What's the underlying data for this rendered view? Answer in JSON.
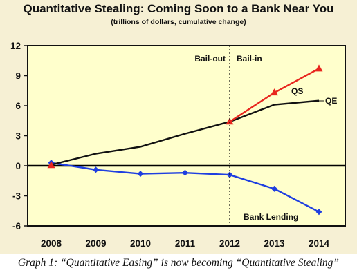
{
  "chart_data": {
    "type": "line",
    "title": "Quantitative Stealing: Coming Soon to a Bank Near You",
    "subtitle": "(trillions of dollars, cumulative change)",
    "x": [
      "2008",
      "2009",
      "2010",
      "2011",
      "2012",
      "2013",
      "2014"
    ],
    "ylim": [
      -6,
      12
    ],
    "yticks": [
      "12",
      "9",
      "6",
      "3",
      "0",
      "-3",
      "-6"
    ],
    "grid": false,
    "series": [
      {
        "name": "QE",
        "color": "#111111",
        "values": [
          0.1,
          1.2,
          1.9,
          3.2,
          4.4,
          6.1,
          6.5
        ]
      },
      {
        "name": "QS",
        "color": "#e8261e",
        "values": [
          null,
          null,
          null,
          null,
          4.4,
          7.3,
          9.7
        ]
      },
      {
        "name": "Bank Lending",
        "color": "#1f3fe0",
        "values": [
          0.3,
          -0.4,
          -0.8,
          -0.7,
          -0.9,
          -2.3,
          -4.6
        ]
      }
    ],
    "annotations": {
      "bailout": "Bail-out",
      "bailin": "Bail-in",
      "divider_x": "2012"
    }
  },
  "caption": "Graph 1: “Quantitative Easing” is now becoming “Quantitative Stealing”"
}
